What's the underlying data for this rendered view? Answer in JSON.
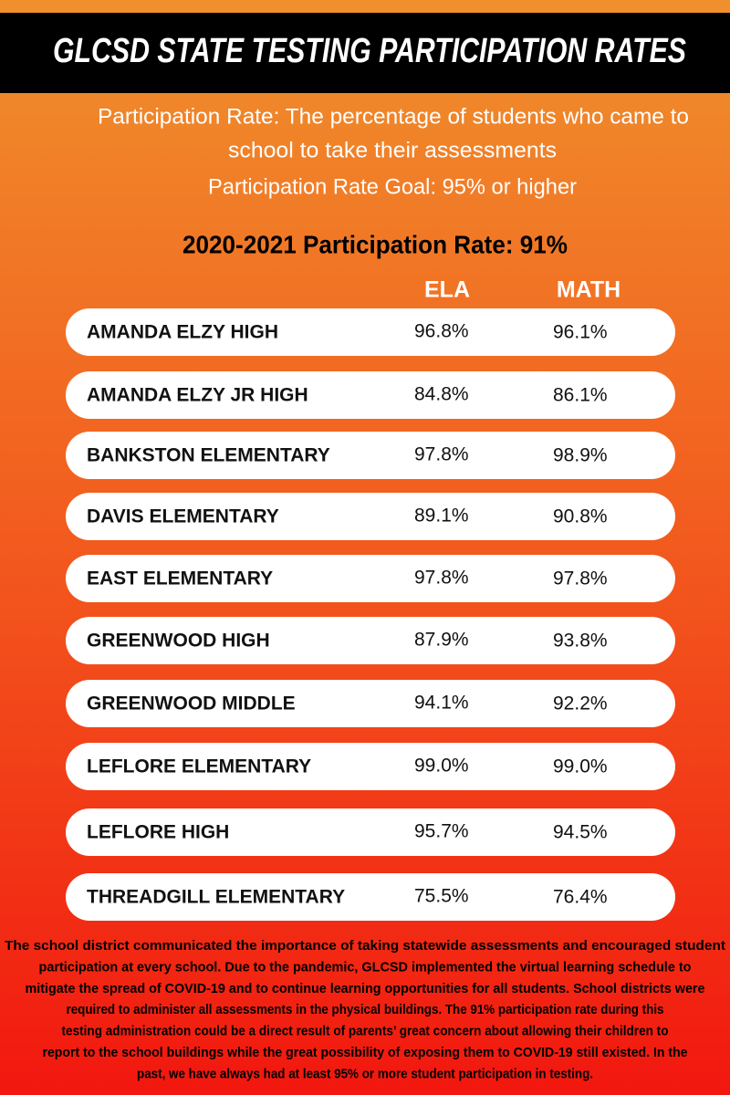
{
  "header": {
    "title": "GLCSD STATE TESTING PARTICIPATION RATES"
  },
  "intro": [
    "Participation Rate: The percentage of students who came to",
    "school to take their assessments",
    "Participation Rate Goal: 95% or higher"
  ],
  "subtitle": "2020-2021 Participation Rate: 91%",
  "table": {
    "columns": [
      "ELA",
      "MATH"
    ],
    "rows": [
      [
        "AMANDA ELZY HIGH",
        "96.8%",
        "96.1%"
      ],
      [
        "AMANDA ELZY JR HIGH",
        "84.8%",
        "86.1%"
      ],
      [
        "BANKSTON ELEMENTARY",
        "97.8%",
        "98.9%"
      ],
      [
        "DAVIS ELEMENTARY",
        "89.1%",
        "90.8%"
      ],
      [
        "EAST ELEMENTARY",
        "97.8%",
        "97.8%"
      ],
      [
        "GREENWOOD HIGH",
        "87.9%",
        "93.8%"
      ],
      [
        "GREENWOOD MIDDLE",
        "94.1%",
        "92.2%"
      ],
      [
        "LEFLORE ELEMENTARY",
        "99.0%",
        "99.0%"
      ],
      [
        "LEFLORE HIGH",
        "95.7%",
        "94.5%"
      ],
      [
        "THREADGILL ELEMENTARY",
        "75.5%",
        "76.4%"
      ]
    ]
  },
  "footer": {
    "lines": [
      "The school district communicated the importance of taking statewide assessments and encouraged student",
      "participation at every school.  Due to the pandemic, GLCSD implemented the virtual learning schedule to",
      "mitigate the spread of COVID-19 and to continue learning opportunities for all students.  School districts were",
      "required to administer all assessments in the physical buildings. The 91% participation rate during this",
      "testing administration could be a direct result of parents’ great concern about allowing their children to",
      "report to the school buildings while the great possibility of exposing them to COVID-19 still existed. In the",
      "past, we have always had at least 95% or more student participation in testing."
    ]
  }
}
